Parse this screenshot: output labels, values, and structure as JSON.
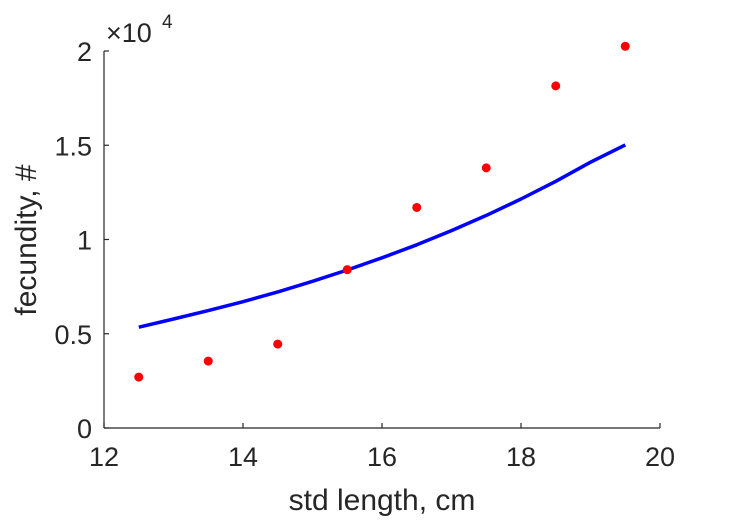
{
  "chart_data": {
    "type": "scatter",
    "xlabel": "std length, cm",
    "ylabel": "fecundity, #",
    "xlim": [
      12,
      20
    ],
    "ylim": [
      0,
      20000
    ],
    "xticks": [
      12,
      14,
      16,
      18,
      20
    ],
    "xtick_labels": [
      "12",
      "14",
      "16",
      "18",
      "20"
    ],
    "yticks": [
      0,
      5000,
      10000,
      15000,
      20000
    ],
    "ytick_labels": [
      "0",
      "0.5",
      "1",
      "1.5",
      "2"
    ],
    "y_exponent": {
      "base": "×10",
      "power": "4"
    },
    "grid": false,
    "series": [
      {
        "kind": "scatter",
        "color": "#ff0000",
        "x": [
          12.5,
          13.5,
          14.5,
          15.5,
          16.5,
          17.5,
          18.5,
          19.5
        ],
        "y": [
          2700,
          3550,
          4450,
          8400,
          11700,
          13800,
          18150,
          20250
        ]
      },
      {
        "kind": "line",
        "color": "#0000ff",
        "x": [
          12.5,
          13.0,
          13.5,
          14.0,
          14.5,
          15.0,
          15.5,
          16.0,
          16.5,
          17.0,
          17.5,
          18.0,
          18.5,
          19.0,
          19.5
        ],
        "y": [
          5350,
          5780,
          6230,
          6700,
          7220,
          7780,
          8380,
          9030,
          9720,
          10470,
          11280,
          12150,
          13090,
          14100,
          15020
        ]
      }
    ]
  }
}
